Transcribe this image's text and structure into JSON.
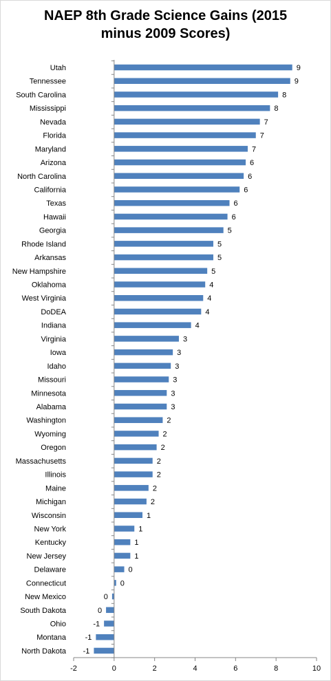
{
  "chart_data": {
    "type": "bar",
    "orientation": "horizontal",
    "title_lines": [
      "NAEP 8th Grade Science Gains (2015",
      "minus 2009 Scores)"
    ],
    "xlim": [
      -2,
      10
    ],
    "xticks": [
      "-2",
      "0",
      "2",
      "4",
      "6",
      "8",
      "10"
    ],
    "grid": false,
    "bar_color": "#4f81bd",
    "categories": [
      "Utah",
      "Tennessee",
      "South Carolina",
      "Mississippi",
      "Nevada",
      "Florida",
      "Maryland",
      "Arizona",
      "North Carolina",
      "California",
      "Texas",
      "Hawaii",
      "Georgia",
      "Rhode Island",
      "Arkansas",
      "New Hampshire",
      "Oklahoma",
      "West Virginia",
      "DoDEA",
      "Indiana",
      "Virginia",
      "Iowa",
      "Idaho",
      "Missouri",
      "Minnesota",
      "Alabama",
      "Washington",
      "Wyoming",
      "Oregon",
      "Massachusetts",
      "Illinois",
      "Maine",
      "Michigan",
      "Wisconsin",
      "New York",
      "Kentucky",
      "New Jersey",
      "Delaware",
      "Connecticut",
      "New Mexico",
      "South Dakota",
      "Ohio",
      "Montana",
      "North Dakota"
    ],
    "values": [
      8.8,
      8.7,
      8.1,
      7.7,
      7.2,
      7.0,
      6.6,
      6.5,
      6.4,
      6.2,
      5.7,
      5.6,
      5.4,
      4.9,
      4.9,
      4.6,
      4.5,
      4.4,
      4.3,
      3.8,
      3.2,
      2.9,
      2.8,
      2.7,
      2.6,
      2.6,
      2.4,
      2.2,
      2.1,
      1.9,
      1.9,
      1.7,
      1.6,
      1.4,
      1.0,
      0.8,
      0.8,
      0.5,
      0.1,
      -0.1,
      -0.4,
      -0.5,
      -0.9,
      -1.0
    ],
    "data_labels": [
      "9",
      "9",
      "8",
      "8",
      "7",
      "7",
      "7",
      "6",
      "6",
      "6",
      "6",
      "6",
      "5",
      "5",
      "5",
      "5",
      "4",
      "4",
      "4",
      "4",
      "3",
      "3",
      "3",
      "3",
      "3",
      "3",
      "2",
      "2",
      "2",
      "2",
      "2",
      "2",
      "2",
      "1",
      "1",
      "1",
      "1",
      "0",
      "0",
      "0",
      "0",
      "-1",
      "-1",
      "-1"
    ]
  }
}
